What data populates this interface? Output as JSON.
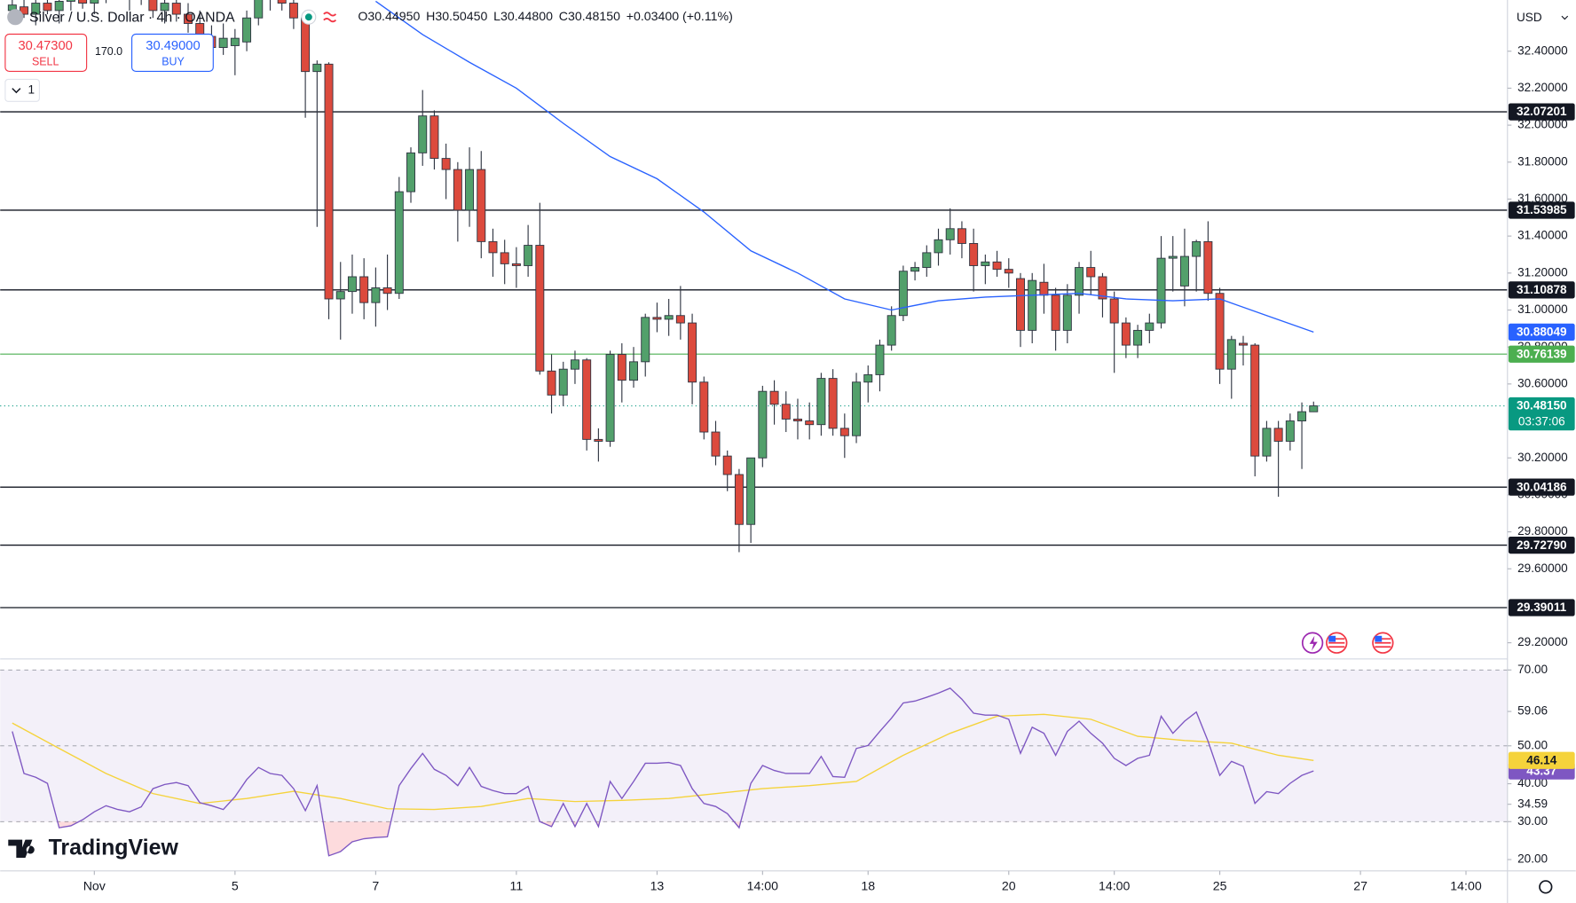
{
  "chart_data": [
    {
      "type": "candlestick",
      "header": {
        "title": "Silver / U.S. Dollar · 4h · OANDA",
        "ohlc": [
          "O30.44950",
          "H30.50450",
          "L30.44800",
          "C30.48150",
          "+0.03400 (+0.11%)"
        ],
        "sell_price": "30.47300",
        "sell": "SELL",
        "spread": "170.0",
        "buy_price": "30.49000",
        "buy": "BUY",
        "interval": "1",
        "currency": "USD",
        "logo": "TradingView"
      },
      "xlim": [
        -1.03,
        127.54
      ],
      "xticks": [
        {
          "value": 7,
          "label": "Nov"
        },
        {
          "value": 19,
          "label": "5"
        },
        {
          "value": 31,
          "label": "7"
        },
        {
          "value": 43,
          "label": "11"
        },
        {
          "value": 55,
          "label": "13"
        },
        {
          "value": 64,
          "label": "14:00"
        },
        {
          "value": 73,
          "label": "18"
        },
        {
          "value": 85,
          "label": "20"
        },
        {
          "value": 94,
          "label": "14:00"
        },
        {
          "value": 103,
          "label": "25"
        },
        {
          "value": 115,
          "label": "27"
        },
        {
          "value": 124,
          "label": "14:00"
        }
      ],
      "ylim": [
        29.118,
        32.677
      ],
      "yticks": [
        {
          "value": 32.4,
          "label": "32.40000"
        },
        {
          "value": 32.2,
          "label": "32.20000"
        },
        {
          "value": 32.0,
          "label": "32.00000"
        },
        {
          "value": 31.8,
          "label": "31.80000"
        },
        {
          "value": 31.6,
          "label": "31.60000"
        },
        {
          "value": 31.4,
          "label": "31.40000"
        },
        {
          "value": 31.2,
          "label": "31.20000"
        },
        {
          "value": 31.0,
          "label": "31.00000"
        },
        {
          "value": 30.8,
          "label": "30.80000"
        },
        {
          "value": 30.6,
          "label": "30.60000"
        },
        {
          "value": 30.2,
          "label": "30.20000"
        },
        {
          "value": 30.0,
          "label": "30.00000"
        },
        {
          "value": 29.8,
          "label": "29.80000"
        },
        {
          "value": 29.6,
          "label": "29.60000"
        },
        {
          "value": 29.2,
          "label": "29.20000"
        }
      ],
      "grid": false,
      "up_color": "#52a06b",
      "down_color": "#dc4a3d",
      "wick_color": "#2f3542",
      "candles": {
        "open": [
          32.62,
          32.64,
          32.6,
          32.66,
          32.62,
          32.67,
          32.7,
          32.66,
          32.72,
          32.74,
          32.7,
          32.73,
          32.68,
          32.62,
          32.66,
          32.6,
          32.55,
          32.48,
          32.42,
          32.43,
          32.45,
          32.58,
          32.68,
          32.72,
          32.66,
          32.58,
          32.29,
          32.33,
          31.06,
          31.1,
          31.18,
          31.04,
          31.12,
          31.09,
          31.64,
          31.85,
          32.05,
          31.82,
          31.76,
          31.54,
          31.76,
          31.37,
          31.31,
          31.25,
          31.24,
          31.35,
          30.67,
          30.54,
          30.68,
          30.73,
          30.3,
          30.29,
          30.76,
          30.62,
          30.72,
          30.96,
          30.95,
          30.97,
          30.93,
          30.61,
          30.34,
          30.21,
          30.11,
          29.84,
          30.2,
          30.56,
          30.49,
          30.41,
          30.4,
          30.38,
          30.63,
          30.36,
          30.32,
          30.61,
          30.65,
          30.81,
          30.97,
          31.21,
          31.23,
          31.31,
          31.38,
          31.44,
          31.36,
          31.24,
          31.26,
          31.22,
          31.17,
          30.89,
          31.15,
          31.08,
          30.89,
          31.08,
          31.23,
          31.18,
          31.06,
          30.93,
          30.81,
          30.89,
          30.93,
          31.28,
          31.13,
          31.29,
          31.37,
          31.09,
          30.68,
          30.82,
          30.81,
          30.21,
          30.36,
          30.29,
          30.4,
          30.4495
        ],
        "high": [
          32.7,
          32.72,
          32.68,
          32.74,
          32.7,
          32.76,
          32.78,
          32.75,
          32.8,
          32.82,
          32.78,
          32.8,
          32.74,
          32.7,
          32.72,
          32.66,
          32.62,
          32.54,
          32.55,
          32.52,
          32.62,
          32.72,
          32.78,
          32.8,
          32.72,
          32.62,
          32.35,
          32.34,
          31.26,
          31.3,
          31.28,
          31.23,
          31.3,
          31.72,
          31.88,
          32.19,
          32.08,
          31.9,
          31.8,
          31.88,
          31.86,
          31.44,
          31.38,
          31.34,
          31.46,
          31.58,
          30.76,
          30.72,
          30.78,
          30.74,
          30.36,
          30.78,
          30.82,
          30.8,
          30.98,
          31.04,
          31.06,
          31.13,
          30.98,
          30.64,
          30.4,
          30.24,
          30.14,
          30.2,
          30.59,
          30.62,
          30.56,
          30.52,
          30.5,
          30.66,
          30.68,
          30.44,
          30.66,
          30.7,
          30.84,
          31.02,
          31.24,
          31.26,
          31.35,
          31.44,
          31.55,
          31.48,
          31.44,
          31.3,
          31.32,
          31.28,
          31.2,
          31.2,
          31.25,
          31.12,
          31.14,
          31.26,
          31.32,
          31.2,
          31.1,
          30.96,
          30.92,
          30.98,
          31.4,
          31.4,
          31.44,
          31.38,
          31.48,
          31.12,
          30.86,
          30.86,
          30.82,
          30.4,
          30.4,
          30.44,
          30.5,
          30.5045
        ],
        "low": [
          32.55,
          32.58,
          32.54,
          32.6,
          32.55,
          32.62,
          32.63,
          32.6,
          32.66,
          32.68,
          32.62,
          32.65,
          32.58,
          32.55,
          32.56,
          32.5,
          32.44,
          32.38,
          32.38,
          32.27,
          32.4,
          32.54,
          32.62,
          32.62,
          32.52,
          32.04,
          31.45,
          30.95,
          30.84,
          30.98,
          30.95,
          30.91,
          31.0,
          31.06,
          31.58,
          31.78,
          31.76,
          31.6,
          31.37,
          31.45,
          31.28,
          31.18,
          31.14,
          31.12,
          31.18,
          30.65,
          30.44,
          30.48,
          30.6,
          30.24,
          30.18,
          30.26,
          30.5,
          30.58,
          30.64,
          30.88,
          30.86,
          30.84,
          30.49,
          30.3,
          30.16,
          30.02,
          29.69,
          29.74,
          30.15,
          30.38,
          30.34,
          30.3,
          30.3,
          30.32,
          30.32,
          30.2,
          30.28,
          30.5,
          30.56,
          30.78,
          30.94,
          31.16,
          31.18,
          31.24,
          31.3,
          31.28,
          31.1,
          31.14,
          31.18,
          31.12,
          30.8,
          30.82,
          30.98,
          30.78,
          30.82,
          30.98,
          31.08,
          30.96,
          30.66,
          30.74,
          30.74,
          30.82,
          30.9,
          31.1,
          31.02,
          31.1,
          31.05,
          30.6,
          30.52,
          30.7,
          30.1,
          30.18,
          29.99,
          30.24,
          30.14,
          30.448
        ],
        "close": [
          32.65,
          32.6,
          32.66,
          32.62,
          32.67,
          32.7,
          32.66,
          32.72,
          32.74,
          32.7,
          32.73,
          32.68,
          32.62,
          32.66,
          32.6,
          32.55,
          32.48,
          32.42,
          32.47,
          32.47,
          32.58,
          32.68,
          32.72,
          32.66,
          32.58,
          32.29,
          32.33,
          31.06,
          31.1,
          31.18,
          31.04,
          31.12,
          31.09,
          31.64,
          31.85,
          32.05,
          31.82,
          31.76,
          31.54,
          31.76,
          31.37,
          31.31,
          31.25,
          31.24,
          31.35,
          30.67,
          30.54,
          30.68,
          30.73,
          30.3,
          30.29,
          30.76,
          30.62,
          30.72,
          30.96,
          30.95,
          30.97,
          30.93,
          30.61,
          30.34,
          30.21,
          30.11,
          29.84,
          30.2,
          30.56,
          30.49,
          30.41,
          30.4,
          30.38,
          30.63,
          30.36,
          30.32,
          30.61,
          30.65,
          30.81,
          30.97,
          31.21,
          31.23,
          31.31,
          31.38,
          31.44,
          31.36,
          31.24,
          31.26,
          31.22,
          31.2,
          30.89,
          31.16,
          31.08,
          30.89,
          31.08,
          31.23,
          31.18,
          31.06,
          30.93,
          30.81,
          30.89,
          30.93,
          31.28,
          31.29,
          31.29,
          31.37,
          31.09,
          30.68,
          30.84,
          30.81,
          30.21,
          30.36,
          30.29,
          30.4,
          30.45,
          30.4815
        ]
      },
      "series": [
        {
          "color": "#2962ff",
          "x": [
            31,
            35,
            39,
            43,
            47,
            51,
            55,
            59,
            63,
            67,
            71,
            75,
            79,
            83,
            87,
            91,
            95,
            99,
            103,
            107,
            111
          ],
          "values": [
            32.67,
            32.49,
            32.34,
            32.2,
            32.01,
            31.83,
            31.71,
            31.53,
            31.32,
            31.2,
            31.06,
            31.0,
            31.05,
            31.07,
            31.08,
            31.09,
            31.06,
            31.05,
            31.06,
            30.97,
            30.88049
          ],
          "last_label": "30.88049"
        }
      ],
      "levels_color": "#131722",
      "levels": [
        {
          "value": 32.07201,
          "label": "32.07201"
        },
        {
          "value": 31.53985,
          "label": "31.53985"
        },
        {
          "value": 31.10878,
          "label": "31.10878"
        },
        {
          "value": 30.04186,
          "label": "30.04186"
        },
        {
          "value": 29.7279,
          "label": "29.72790"
        },
        {
          "value": 29.39011,
          "label": "29.39011"
        }
      ],
      "highlight_level": {
        "value": 30.76139,
        "label": "30.76139",
        "color": "#4caf50"
      },
      "current_price": {
        "value": 30.4815,
        "label": "30.48150",
        "countdown": "03:37:06",
        "color": "#089981"
      }
    },
    {
      "type": "line",
      "ylim": [
        17.02,
        72.65
      ],
      "yticks": [
        {
          "value": 70,
          "label": "70.00"
        },
        {
          "value": 59.06,
          "label": "59.06"
        },
        {
          "value": 50,
          "label": "50.00"
        },
        {
          "value": 40,
          "label": "40.00"
        },
        {
          "value": 34.59,
          "label": "34.59"
        },
        {
          "value": 30,
          "label": "30.00"
        },
        {
          "value": 20,
          "label": "20.00"
        }
      ],
      "bands": [
        70,
        50,
        30
      ],
      "band_color": "#7e57c2",
      "oversold_color": "#f23645",
      "series": [
        {
          "color": "#7e57c2",
          "last_label": "43.37",
          "values": [
            53.8,
            42.7,
            41.7,
            40.1,
            28.4,
            28.9,
            30.5,
            32.6,
            34.2,
            33.2,
            32.6,
            33.9,
            38.7,
            39.8,
            40.3,
            39.5,
            35.0,
            34.2,
            33.2,
            36.6,
            41.1,
            44.3,
            42.7,
            42.2,
            38.7,
            32.9,
            39.5,
            21.0,
            22.1,
            24.7,
            25.5,
            25.8,
            26.0,
            39.5,
            44.0,
            48.0,
            43.8,
            42.2,
            39.5,
            44.3,
            39.3,
            38.2,
            37.4,
            37.4,
            39.3,
            30.0,
            28.7,
            34.8,
            28.7,
            34.8,
            28.7,
            40.6,
            36.1,
            40.6,
            45.4,
            45.4,
            45.6,
            44.8,
            38.7,
            34.8,
            34.0,
            32.1,
            28.4,
            40.1,
            44.8,
            43.5,
            42.7,
            42.7,
            42.7,
            47.2,
            41.9,
            41.7,
            49.3,
            50.1,
            53.8,
            57.3,
            61.3,
            61.8,
            62.8,
            63.9,
            65.2,
            62.3,
            58.6,
            58.1,
            58.1,
            57.0,
            48.0,
            54.9,
            53.3,
            47.5,
            53.8,
            56.5,
            53.3,
            50.7,
            46.7,
            44.8,
            46.7,
            47.5,
            57.8,
            53.3,
            56.5,
            58.9,
            51.2,
            42.2,
            45.9,
            44.6,
            34.8,
            37.9,
            37.4,
            40.1,
            42.2,
            43.37
          ]
        },
        {
          "color": "#f5d33b",
          "last_label": "46.14",
          "x": [
            0,
            4,
            8,
            12,
            16,
            20,
            24,
            28,
            32,
            36,
            40,
            44,
            48,
            52,
            56,
            60,
            64,
            68,
            72,
            76,
            80,
            84,
            88,
            92,
            96,
            100,
            104,
            108,
            111
          ],
          "values": [
            56.0,
            49.3,
            42.7,
            37.4,
            34.8,
            36.1,
            38.0,
            36.1,
            33.4,
            33.2,
            34.0,
            36.1,
            35.3,
            35.6,
            36.1,
            37.4,
            38.7,
            39.5,
            40.6,
            47.5,
            53.3,
            57.8,
            58.3,
            57.0,
            52.5,
            51.4,
            50.7,
            47.5,
            46.14
          ]
        }
      ]
    }
  ]
}
